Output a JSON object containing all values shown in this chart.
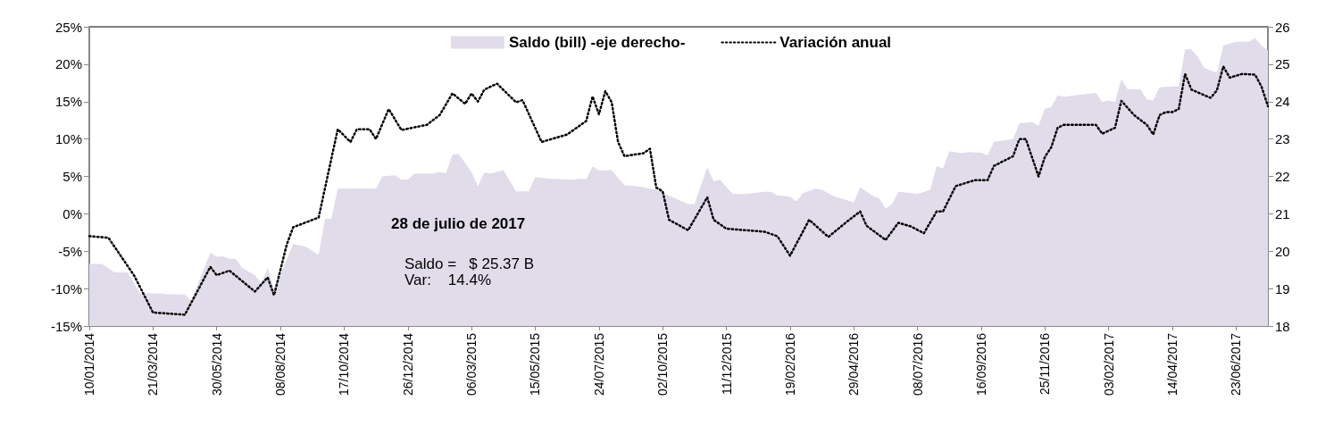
{
  "chart_data": {
    "type": "line",
    "legend": "top",
    "grid": false,
    "marker": "none",
    "annotations": [
      "28 de julio de 2017",
      "Saldo =   $ 25.37 B",
      "Var:    14.4%"
    ],
    "xlim": [
      "2014-01-10",
      "2017-07-28"
    ],
    "xticks": [
      {
        "value": "2014-01-10",
        "label": "10/01/2014"
      },
      {
        "value": "2014-03-21",
        "label": "21/03/2014"
      },
      {
        "value": "2014-05-30",
        "label": "30/05/2014"
      },
      {
        "value": "2014-08-08",
        "label": "08/08/2014"
      },
      {
        "value": "2014-10-17",
        "label": "17/10/2014"
      },
      {
        "value": "2014-12-26",
        "label": "26/12/2014"
      },
      {
        "value": "2015-03-06",
        "label": "06/03/2015"
      },
      {
        "value": "2015-05-15",
        "label": "15/05/2015"
      },
      {
        "value": "2015-07-24",
        "label": "24/07/2015"
      },
      {
        "value": "2015-10-02",
        "label": "02/10/2015"
      },
      {
        "value": "2015-12-11",
        "label": "11/12/2015"
      },
      {
        "value": "2016-02-19",
        "label": "19/02/2016"
      },
      {
        "value": "2016-04-29",
        "label": "29/04/2016"
      },
      {
        "value": "2016-07-08",
        "label": "08/07/2016"
      },
      {
        "value": "2016-09-16",
        "label": "16/09/2016"
      },
      {
        "value": "2016-11-25",
        "label": "25/11/2016"
      },
      {
        "value": "2017-02-03",
        "label": "03/02/2017"
      },
      {
        "value": "2017-04-14",
        "label": "14/04/2017"
      },
      {
        "value": "2017-06-23",
        "label": "23/06/2017"
      }
    ],
    "ylim": [
      -15,
      25
    ],
    "yticks": [
      {
        "value": -15,
        "label": "-15%"
      },
      {
        "value": -10,
        "label": "-10%"
      },
      {
        "value": -5,
        "label": "-5%"
      },
      {
        "value": 0,
        "label": "0%"
      },
      {
        "value": 5,
        "label": "5%"
      },
      {
        "value": 10,
        "label": "10%"
      },
      {
        "value": 15,
        "label": "15%"
      },
      {
        "value": 20,
        "label": "20%"
      },
      {
        "value": 25,
        "label": "25%"
      }
    ],
    "y2lim": [
      18,
      26
    ],
    "y2ticks": [
      18,
      19,
      20,
      21,
      22,
      23,
      24,
      25,
      26
    ],
    "series": [
      {
        "name": "Saldo (bill) -eje derecho-",
        "type": "area",
        "axis": "y2",
        "color": "#e0dcea",
        "x": [
          "2014-01-10",
          "2014-01-24",
          "2014-02-07",
          "2014-02-21",
          "2014-03-07",
          "2014-03-28",
          "2014-04-04",
          "2014-04-25",
          "2014-05-02",
          "2014-05-23",
          "2014-05-30",
          "2014-06-06",
          "2014-06-13",
          "2014-06-20",
          "2014-06-27",
          "2014-07-11",
          "2014-07-18",
          "2014-07-25",
          "2014-08-01",
          "2014-08-22",
          "2014-09-05",
          "2014-09-19",
          "2014-09-26",
          "2014-10-03",
          "2014-10-10",
          "2014-11-21",
          "2014-11-28",
          "2014-12-12",
          "2014-12-19",
          "2014-12-26",
          "2015-01-02",
          "2015-01-23",
          "2015-01-30",
          "2015-02-06",
          "2015-02-13",
          "2015-02-20",
          "2015-03-06",
          "2015-03-13",
          "2015-03-20",
          "2015-03-27",
          "2015-04-10",
          "2015-04-24",
          "2015-05-08",
          "2015-05-15",
          "2015-05-29",
          "2015-06-26",
          "2015-07-03",
          "2015-07-10",
          "2015-07-17",
          "2015-07-24",
          "2015-08-07",
          "2015-08-21",
          "2015-09-04",
          "2015-09-25",
          "2015-10-16",
          "2015-10-30",
          "2015-11-06",
          "2015-11-20",
          "2015-11-27",
          "2015-12-04",
          "2015-12-18",
          "2016-01-01",
          "2016-01-22",
          "2016-01-29",
          "2016-02-05",
          "2016-02-19",
          "2016-02-26",
          "2016-03-04",
          "2016-03-18",
          "2016-03-25",
          "2016-04-08",
          "2016-04-29",
          "2016-05-06",
          "2016-05-20",
          "2016-05-27",
          "2016-06-03",
          "2016-06-10",
          "2016-06-17",
          "2016-07-01",
          "2016-07-08",
          "2016-07-22",
          "2016-07-29",
          "2016-08-05",
          "2016-08-12",
          "2016-08-26",
          "2016-09-02",
          "2016-09-16",
          "2016-09-23",
          "2016-09-30",
          "2016-10-21",
          "2016-10-28",
          "2016-11-11",
          "2016-11-18",
          "2016-11-25",
          "2016-12-02",
          "2016-12-09",
          "2016-12-16",
          "2017-01-20",
          "2017-01-27",
          "2017-02-03",
          "2017-02-10",
          "2017-02-17",
          "2017-02-24",
          "2017-03-10",
          "2017-03-17",
          "2017-03-24",
          "2017-03-31",
          "2017-04-21",
          "2017-04-28",
          "2017-05-05",
          "2017-05-12",
          "2017-05-19",
          "2017-06-02",
          "2017-06-09",
          "2017-06-23",
          "2017-07-07",
          "2017-07-14",
          "2017-07-21",
          "2017-07-28"
        ],
        "values": [
          19.66,
          19.66,
          19.43,
          19.43,
          18.87,
          18.87,
          18.85,
          18.84,
          18.68,
          19.96,
          19.85,
          19.86,
          19.8,
          19.8,
          19.55,
          19.36,
          19.14,
          19.55,
          18.98,
          20.19,
          20.12,
          19.9,
          20.87,
          20.87,
          21.67,
          21.67,
          22.0,
          22.03,
          21.91,
          21.91,
          22.07,
          22.08,
          22.12,
          22.08,
          22.58,
          22.6,
          22.12,
          21.74,
          22.1,
          22.08,
          22.17,
          21.6,
          21.6,
          21.98,
          21.94,
          21.91,
          21.94,
          21.92,
          22.26,
          22.16,
          22.17,
          21.76,
          21.74,
          21.64,
          21.41,
          21.26,
          21.26,
          22.24,
          21.87,
          21.91,
          21.53,
          21.53,
          21.59,
          21.59,
          21.49,
          21.46,
          21.33,
          21.55,
          21.67,
          21.64,
          21.46,
          21.31,
          21.71,
          21.48,
          21.41,
          21.14,
          21.26,
          21.59,
          21.55,
          21.53,
          21.64,
          22.28,
          22.21,
          22.67,
          22.62,
          22.65,
          22.63,
          22.56,
          22.92,
          23.0,
          23.42,
          23.45,
          23.35,
          23.81,
          23.85,
          24.17,
          24.13,
          24.23,
          23.99,
          24.03,
          23.99,
          24.6,
          24.33,
          24.33,
          24.06,
          24.03,
          24.38,
          24.41,
          25.4,
          25.4,
          25.2,
          24.9,
          24.77,
          25.5,
          25.6,
          25.6,
          25.7,
          25.5,
          25.37
        ]
      },
      {
        "name": "Variación anual",
        "type": "line",
        "line_style": "dotted",
        "color": "#000000",
        "x": [
          "2014-01-10",
          "2014-01-31",
          "2014-02-28",
          "2014-03-21",
          "2014-04-25",
          "2014-05-23",
          "2014-05-30",
          "2014-06-13",
          "2014-07-11",
          "2014-07-25",
          "2014-08-01",
          "2014-08-15",
          "2014-08-22",
          "2014-09-19",
          "2014-10-10",
          "2014-10-24",
          "2014-10-31",
          "2014-11-14",
          "2014-11-21",
          "2014-12-05",
          "2014-12-19",
          "2015-01-16",
          "2015-01-30",
          "2015-02-13",
          "2015-02-27",
          "2015-03-06",
          "2015-03-13",
          "2015-03-20",
          "2015-04-03",
          "2015-04-24",
          "2015-05-01",
          "2015-05-22",
          "2015-06-19",
          "2015-07-10",
          "2015-07-17",
          "2015-07-24",
          "2015-07-31",
          "2015-08-07",
          "2015-08-14",
          "2015-08-21",
          "2015-09-11",
          "2015-09-18",
          "2015-09-25",
          "2015-10-02",
          "2015-10-09",
          "2015-10-30",
          "2015-11-20",
          "2015-11-27",
          "2015-12-11",
          "2016-01-22",
          "2016-02-05",
          "2016-02-19",
          "2016-03-11",
          "2016-04-01",
          "2016-04-22",
          "2016-05-06",
          "2016-05-13",
          "2016-06-03",
          "2016-06-17",
          "2016-07-01",
          "2016-07-15",
          "2016-07-29",
          "2016-08-05",
          "2016-08-19",
          "2016-09-09",
          "2016-09-23",
          "2016-09-30",
          "2016-10-21",
          "2016-10-28",
          "2016-11-04",
          "2016-11-18",
          "2016-11-25",
          "2016-12-02",
          "2016-12-09",
          "2016-12-16",
          "2017-01-20",
          "2017-01-27",
          "2017-02-10",
          "2017-02-17",
          "2017-03-03",
          "2017-03-17",
          "2017-03-24",
          "2017-03-31",
          "2017-04-07",
          "2017-04-14",
          "2017-04-21",
          "2017-04-28",
          "2017-05-05",
          "2017-05-26",
          "2017-06-02",
          "2017-06-09",
          "2017-06-16",
          "2017-06-30",
          "2017-07-14",
          "2017-07-21",
          "2017-07-28"
        ],
        "values": [
          -3.0,
          -3.2,
          -8.2,
          -13.2,
          -13.5,
          -7.1,
          -8.2,
          -7.6,
          -10.4,
          -8.5,
          -10.9,
          -4.1,
          -1.8,
          -0.5,
          11.3,
          9.6,
          11.3,
          11.3,
          10.0,
          14.0,
          11.2,
          11.9,
          13.2,
          16.1,
          14.7,
          16.1,
          15.0,
          16.6,
          17.4,
          14.9,
          15.2,
          9.6,
          10.6,
          12.4,
          15.7,
          13.3,
          16.4,
          14.9,
          9.6,
          7.7,
          8.1,
          8.7,
          3.5,
          3.0,
          -0.8,
          -2.2,
          2.2,
          -0.8,
          -2.0,
          -2.4,
          -3.0,
          -5.6,
          -0.8,
          -3.1,
          -1.0,
          0.3,
          -1.6,
          -3.5,
          -1.2,
          -1.7,
          -2.6,
          0.3,
          0.3,
          3.7,
          4.5,
          4.5,
          6.4,
          7.7,
          10.0,
          10.0,
          5.0,
          7.6,
          8.9,
          11.5,
          11.9,
          11.9,
          10.7,
          11.5,
          15.1,
          13.2,
          11.9,
          10.6,
          13.2,
          13.6,
          13.6,
          14.0,
          18.7,
          16.6,
          15.5,
          16.5,
          19.7,
          18.2,
          18.7,
          18.6,
          17.0,
          14.4
        ]
      }
    ]
  }
}
